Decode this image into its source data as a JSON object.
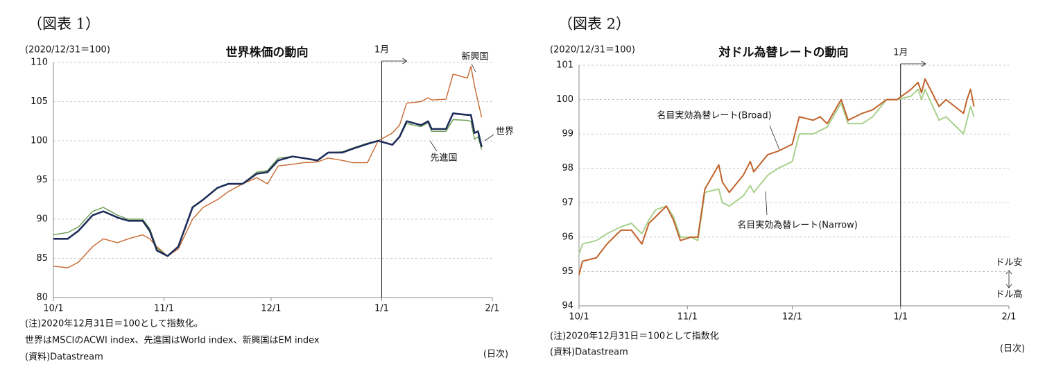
{
  "chart_data": [
    {
      "type": "line",
      "figure_label": "（図表 1）",
      "unit": "(2020/12/31＝100)",
      "title": "世界株価の動向",
      "marker": {
        "label": "1月",
        "x": "1/1"
      },
      "x": [
        "10/1",
        "10/5",
        "10/8",
        "10/12",
        "10/15",
        "10/19",
        "10/22",
        "10/26",
        "10/28",
        "10/30",
        "11/2",
        "11/5",
        "11/9",
        "11/12",
        "11/16",
        "11/19",
        "11/23",
        "11/27",
        "11/30",
        "12/3",
        "12/7",
        "12/10",
        "12/14",
        "12/17",
        "12/21",
        "12/24",
        "12/28",
        "12/31",
        "1/4",
        "1/6",
        "1/8",
        "1/12",
        "1/14",
        "1/15",
        "1/19",
        "1/21",
        "1/25",
        "1/26",
        "1/27",
        "1/28",
        "1/29"
      ],
      "series": [
        {
          "name": "新興国",
          "color": "#c8672e",
          "width": 1.4,
          "values": [
            84,
            83.8,
            84.5,
            86.5,
            87.5,
            87,
            87.5,
            88,
            87.5,
            86.5,
            85.3,
            86.2,
            90,
            91.5,
            92.5,
            93.5,
            94.5,
            95.3,
            94.5,
            96.8,
            97,
            97.2,
            97.3,
            97.8,
            97.5,
            97.2,
            97.2,
            100,
            101,
            102,
            104.8,
            105,
            105.5,
            105.2,
            105.3,
            108.5,
            108,
            109.5,
            107,
            105,
            103
          ]
        },
        {
          "name": "先進国",
          "color": "#6a9a4f",
          "width": 1.4,
          "values": [
            88,
            88.3,
            89,
            91,
            91.5,
            90.5,
            90,
            90,
            88.8,
            86.3,
            85.3,
            86.5,
            91.6,
            92.5,
            94,
            94.5,
            94.5,
            96,
            96.2,
            97.8,
            98,
            97.8,
            97.5,
            98.5,
            98.6,
            99.1,
            99.7,
            100,
            99.5,
            100.5,
            102.2,
            101.8,
            102.3,
            101.2,
            101.2,
            102.7,
            102.6,
            102.5,
            100.2,
            100.5,
            98.9
          ]
        },
        {
          "name": "世界",
          "color": "#1f2d5a",
          "width": 2.6,
          "values": [
            87.5,
            87.5,
            88.5,
            90.5,
            91,
            90.2,
            89.8,
            89.8,
            88.5,
            86,
            85.3,
            86.5,
            91.5,
            92.5,
            94,
            94.5,
            94.5,
            95.8,
            96,
            97.5,
            98,
            97.8,
            97.5,
            98.5,
            98.5,
            99,
            99.6,
            100,
            99.5,
            100.5,
            102.5,
            102,
            102.5,
            101.5,
            101.5,
            103.5,
            103.3,
            103.3,
            101,
            101.2,
            99.2
          ]
        }
      ],
      "xlim": [
        "10/1",
        "2/1"
      ],
      "xticks": [
        "10/1",
        "11/1",
        "12/1",
        "1/1",
        "2/1"
      ],
      "ylim": [
        80,
        110
      ],
      "yticks": [
        80,
        85,
        90,
        95,
        100,
        105,
        110
      ],
      "grid": true,
      "notes": [
        "(注)2020年12月31日＝100として指数化。",
        "世界はMSCIのACWI index、先進国はWorld index、新興国はEM index",
        "(資料)Datastream"
      ],
      "x_unit": "(日次)"
    },
    {
      "type": "line",
      "figure_label": "（図表 2）",
      "unit": "(2020/12/31＝100)",
      "title": "対ドル為替レートの動向",
      "marker": {
        "label": "1月",
        "x": "1/1"
      },
      "x": [
        "10/1",
        "10/2",
        "10/6",
        "10/9",
        "10/13",
        "10/16",
        "10/19",
        "10/21",
        "10/23",
        "10/26",
        "10/28",
        "10/30",
        "11/2",
        "11/4",
        "11/6",
        "11/10",
        "11/11",
        "11/13",
        "11/17",
        "11/19",
        "11/20",
        "11/24",
        "11/27",
        "12/1",
        "12/3",
        "12/7",
        "12/9",
        "12/11",
        "12/15",
        "12/17",
        "12/21",
        "12/24",
        "12/28",
        "12/31",
        "1/4",
        "1/6",
        "1/7",
        "1/8",
        "1/12",
        "1/14",
        "1/19",
        "1/20",
        "1/21",
        "1/22"
      ],
      "series": [
        {
          "name": "名目実効為替レート(Narrow)",
          "color": "#a9d18e",
          "width": 2,
          "values": [
            95.5,
            95.8,
            95.9,
            96.1,
            96.3,
            96.4,
            96.1,
            96.5,
            96.8,
            96.9,
            96.6,
            96,
            96,
            95.9,
            97.3,
            97.4,
            97,
            96.9,
            97.2,
            97.5,
            97.3,
            97.8,
            98,
            98.2,
            99,
            99,
            99.1,
            99.2,
            99.9,
            99.3,
            99.3,
            99.5,
            100,
            100,
            100.1,
            100.3,
            100,
            100.3,
            99.4,
            99.5,
            99,
            99.4,
            99.8,
            99.5
          ]
        },
        {
          "name": "名目実効為替レート(Broad)",
          "color": "#c0622a",
          "width": 2,
          "values": [
            94.9,
            95.3,
            95.4,
            95.8,
            96.2,
            96.2,
            95.8,
            96.4,
            96.6,
            96.9,
            96.5,
            95.9,
            96,
            96,
            97.4,
            98.1,
            97.6,
            97.3,
            97.8,
            98.2,
            97.9,
            98.4,
            98.5,
            98.7,
            99.5,
            99.4,
            99.5,
            99.3,
            100,
            99.4,
            99.6,
            99.7,
            100,
            100,
            100.3,
            100.5,
            100.2,
            100.6,
            99.8,
            100,
            99.6,
            100,
            100.3,
            99.8
          ]
        }
      ],
      "xlim": [
        "10/1",
        "2/1"
      ],
      "xticks": [
        "10/1",
        "11/1",
        "12/1",
        "1/1",
        "2/1"
      ],
      "ylim": [
        94,
        101
      ],
      "yticks": [
        94,
        95,
        96,
        97,
        98,
        99,
        100,
        101
      ],
      "grid": true,
      "direction_labels": [
        "ドル安",
        "ドル高"
      ],
      "notes": [
        "(注)2020年12月31日＝100として指数化",
        "(資料)Datastream"
      ],
      "x_unit": "(日次)"
    }
  ]
}
